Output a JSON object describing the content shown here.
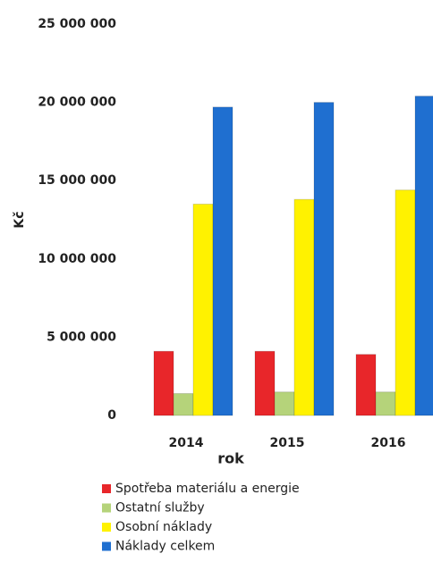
{
  "chart_data": {
    "type": "bar",
    "y_label": "Kč",
    "x_label": "rok",
    "categories": [
      "2014",
      "2015",
      "2016"
    ],
    "series": [
      {
        "name": "Spotřeba materiálu a energie",
        "color": "#e8262a",
        "values": [
          4100000,
          4100000,
          3900000
        ]
      },
      {
        "name": "Ostatní služby",
        "color": "#b5d37a",
        "values": [
          1400000,
          1500000,
          1500000
        ]
      },
      {
        "name": "Osobní náklady",
        "color": "#fff200",
        "values": [
          13500000,
          13800000,
          14400000
        ]
      },
      {
        "name": "Náklady celkem",
        "color": "#1f6fd0",
        "values": [
          19700000,
          20000000,
          20400000
        ]
      }
    ],
    "ylim": [
      0,
      25000000
    ],
    "yticks": [
      0,
      {
        "value": 5000000,
        "label": "5 000 000"
      },
      {
        "value": 10000000,
        "label": "10 000 000"
      },
      {
        "value": 15000000,
        "label": "15 000 000"
      },
      {
        "value": 20000000,
        "label": "20 000 000"
      },
      {
        "value": 25000000,
        "label": "25 000 000"
      }
    ],
    "grid": false
  }
}
